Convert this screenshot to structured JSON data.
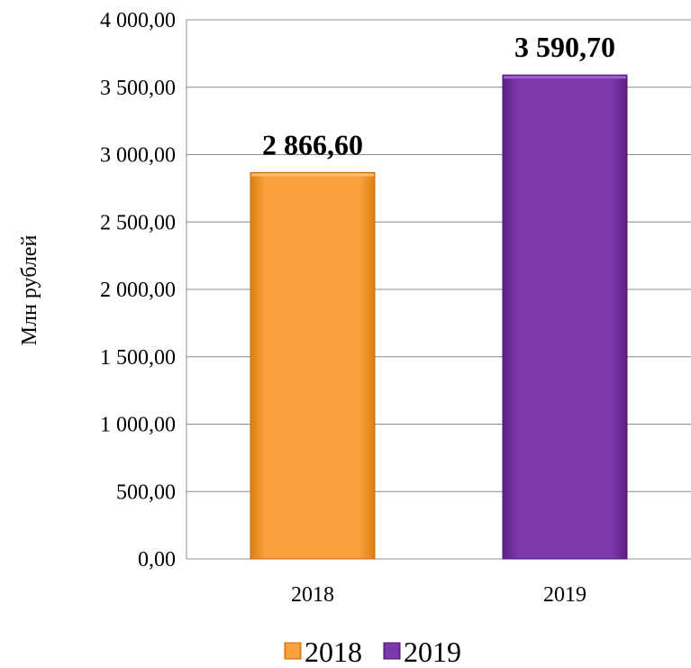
{
  "chart_data": {
    "type": "bar",
    "categories": [
      "2018",
      "2019"
    ],
    "values": [
      2866.6,
      3590.7
    ],
    "data_labels": [
      "2 866,60",
      "3 590,70"
    ],
    "series": [
      {
        "name": "2018",
        "value": 2866.6,
        "color": "#F79A2E"
      },
      {
        "name": "2019",
        "value": 3590.7,
        "color": "#7A34A8"
      }
    ],
    "title": "",
    "xlabel": "",
    "ylabel": "Млн рублей",
    "ylim": [
      0,
      4000
    ],
    "yticks": [
      0,
      500,
      1000,
      1500,
      2000,
      2500,
      3000,
      3500,
      4000
    ],
    "ytick_labels": [
      "0,00",
      "500,00",
      "1 000,00",
      "1 500,00",
      "2 000,00",
      "2 500,00",
      "3 000,00",
      "3 500,00",
      "4 000,00"
    ],
    "grid": true,
    "legend_position": "bottom",
    "legend": [
      "2018",
      "2019"
    ]
  }
}
